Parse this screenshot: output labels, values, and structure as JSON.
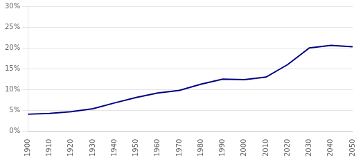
{
  "chart_data": {
    "type": "line",
    "x": [
      1900,
      1910,
      1920,
      1930,
      1940,
      1950,
      1960,
      1970,
      1980,
      1990,
      2000,
      2010,
      2020,
      2030,
      2040,
      2050
    ],
    "values": [
      4.1,
      4.3,
      4.7,
      5.4,
      6.8,
      8.1,
      9.2,
      9.8,
      11.3,
      12.5,
      12.4,
      13.0,
      16.0,
      20.0,
      20.6,
      20.3
    ],
    "color": "#000080",
    "xlim": [
      1900,
      2050
    ],
    "xticks": [
      1900,
      1910,
      1920,
      1930,
      1940,
      1950,
      1960,
      1970,
      1980,
      1990,
      2000,
      2010,
      2020,
      2030,
      2040,
      2050
    ],
    "ylim": [
      0,
      30
    ],
    "yticks": [
      {
        "value": 0,
        "label": "0%"
      },
      {
        "value": 5,
        "label": "5%"
      },
      {
        "value": 10,
        "label": "10%"
      },
      {
        "value": 15,
        "label": "15%"
      },
      {
        "value": 20,
        "label": "20%"
      },
      {
        "value": 25,
        "label": "25%"
      },
      {
        "value": 30,
        "label": "30%"
      }
    ],
    "grid": "y"
  }
}
